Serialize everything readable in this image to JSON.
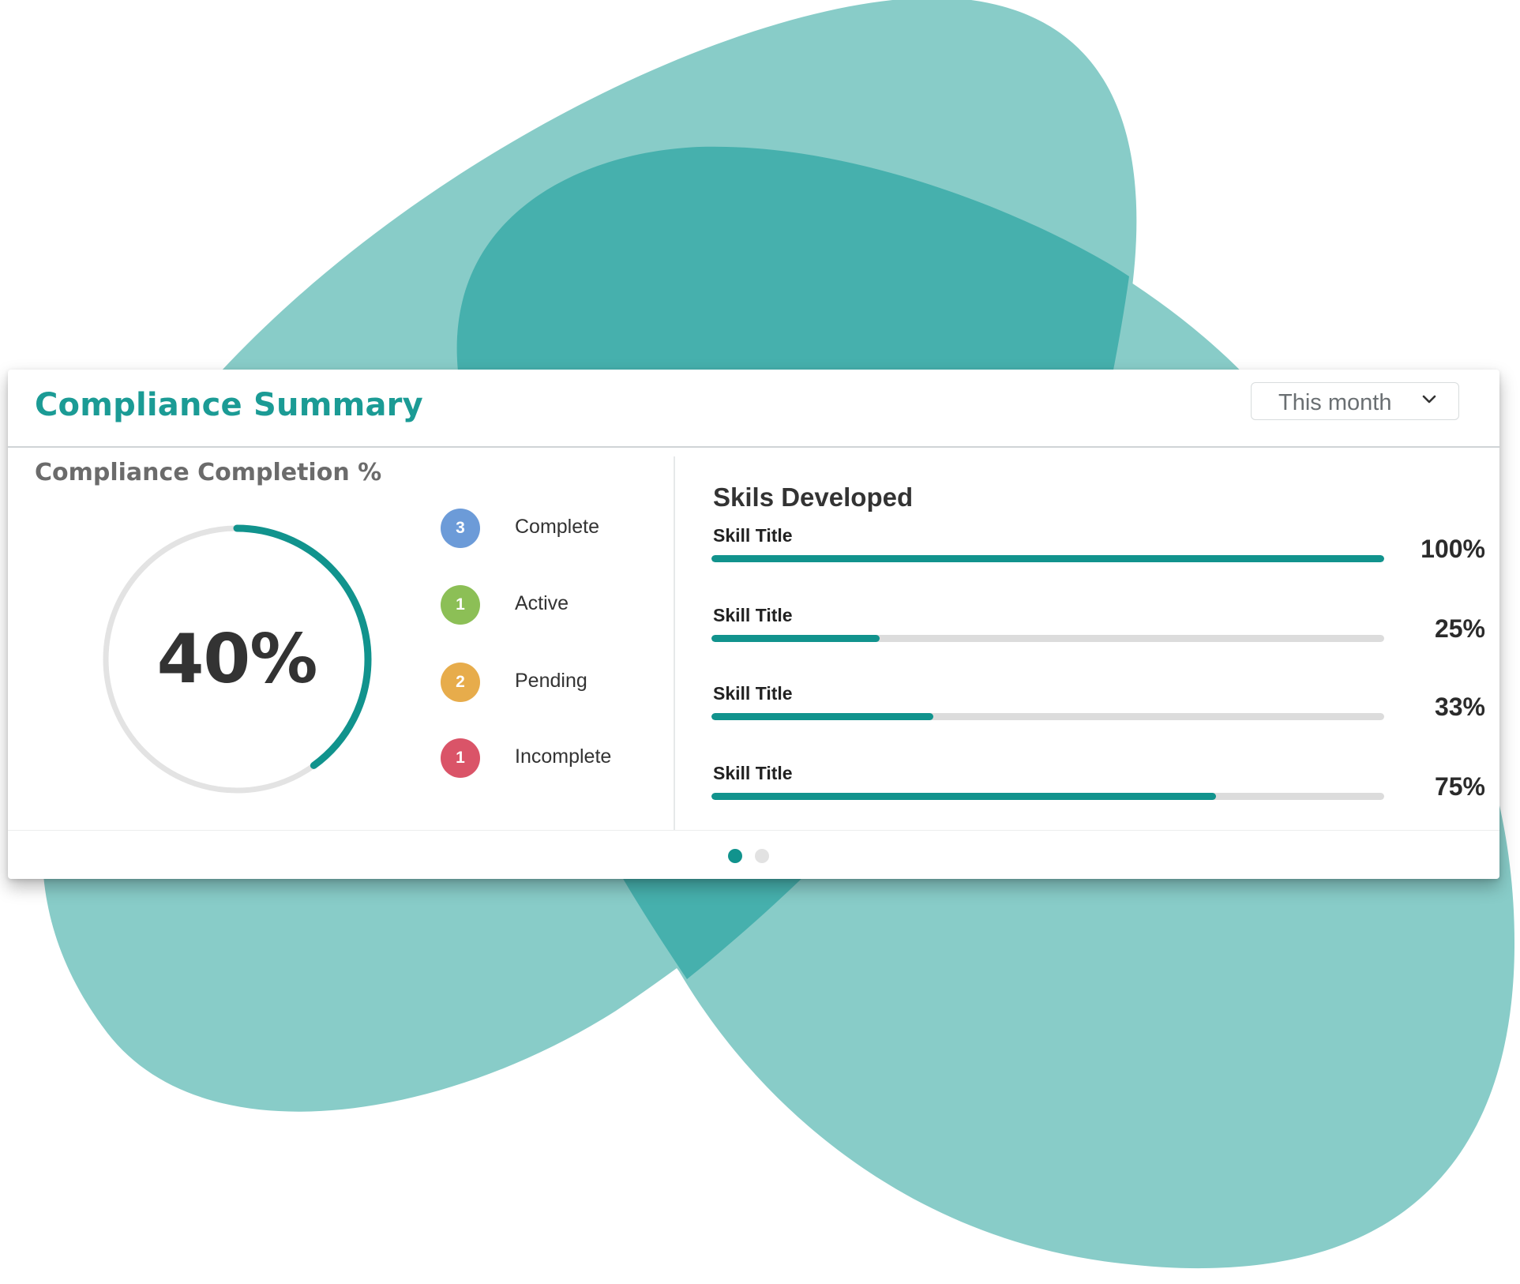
{
  "card": {
    "title": "Compliance Summary",
    "period_select": {
      "value": "This month"
    }
  },
  "completion": {
    "title": "Compliance Completion %",
    "value": 40,
    "value_label": "40%",
    "legend": [
      {
        "count": "3",
        "label": "Complete",
        "color": "#6c9bd8"
      },
      {
        "count": "1",
        "label": "Active",
        "color": "#8cbf56"
      },
      {
        "count": "2",
        "label": "Pending",
        "color": "#e7ac4b"
      },
      {
        "count": "1",
        "label": "Incomplete",
        "color": "#da5468"
      }
    ]
  },
  "skills": {
    "title": "Skils Developed",
    "items": [
      {
        "title": "Skill Title",
        "percent": 100,
        "percent_label": "100%"
      },
      {
        "title": "Skill Title",
        "percent": 25,
        "percent_label": "25%"
      },
      {
        "title": "Skill Title",
        "percent": 33,
        "percent_label": "33%"
      },
      {
        "title": "Skill Title",
        "percent": 75,
        "percent_label": "75%"
      }
    ]
  },
  "pager": {
    "pages": 2,
    "active": 0
  },
  "colors": {
    "accent": "#11938d",
    "title": "#1b9b95",
    "blob_light": "#88ccc8",
    "blob_dark": "#46b0ad",
    "track": "#dcdcdc",
    "donut_track": "#e3e3e3",
    "dot_inactive": "#e2e2e2"
  },
  "icons": {
    "dropdown": "chevron-down-icon"
  }
}
